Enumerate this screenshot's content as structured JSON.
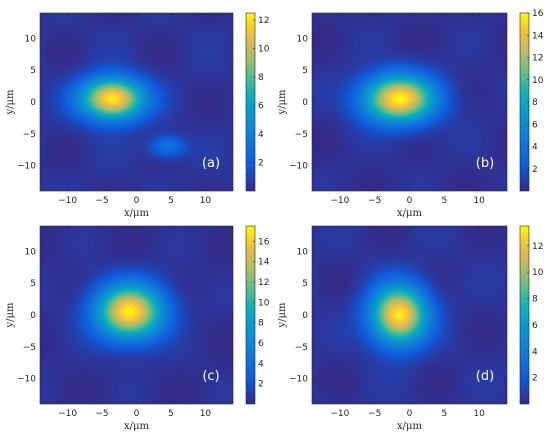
{
  "chart_data": [
    {
      "type": "heatmap",
      "panel_label": "(a)",
      "xlabel": "x/μm",
      "ylabel": "y/μm",
      "xlim": [
        -14,
        14
      ],
      "ylim": [
        -14,
        14
      ],
      "x_ticks": [
        "-10",
        "-5",
        "0",
        "5",
        "10"
      ],
      "y_ticks": [
        "10",
        "5",
        "0",
        "-5",
        "-10"
      ],
      "colorbar": {
        "min": 0,
        "max": 12.5,
        "ticks": [
          "12",
          "10",
          "8",
          "6",
          "4",
          "2"
        ]
      },
      "peaks": [
        {
          "x": -3.5,
          "y": 0.5,
          "value": 12.2,
          "sx": 3.2,
          "sy": 2.3
        },
        {
          "x": 4.5,
          "y": -7,
          "value": 3.0,
          "sx": 1.8,
          "sy": 1.2
        }
      ]
    },
    {
      "type": "heatmap",
      "panel_label": "(b)",
      "xlabel": "x/μm",
      "ylabel": "y/μm",
      "xlim": [
        -14,
        14
      ],
      "ylim": [
        -14,
        14
      ],
      "x_ticks": [
        "-10",
        "-5",
        "0",
        "5",
        "10"
      ],
      "y_ticks": [
        "10",
        "5",
        "0",
        "-5",
        "-10"
      ],
      "colorbar": {
        "min": 0,
        "max": 16,
        "ticks": [
          "16",
          "14",
          "12",
          "10",
          "8",
          "6",
          "4",
          "2"
        ]
      },
      "peaks": [
        {
          "x": -1.5,
          "y": 0.5,
          "value": 15.5,
          "sx": 3.6,
          "sy": 2.6
        }
      ]
    },
    {
      "type": "heatmap",
      "panel_label": "(c)",
      "xlabel": "x/μm",
      "ylabel": "y/μm",
      "xlim": [
        -14,
        14
      ],
      "ylim": [
        -14,
        14
      ],
      "x_ticks": [
        "-10",
        "-5",
        "0",
        "5",
        "10"
      ],
      "y_ticks": [
        "10",
        "5",
        "0",
        "-5",
        "-10"
      ],
      "colorbar": {
        "min": 0,
        "max": 17.5,
        "ticks": [
          "16",
          "14",
          "12",
          "10",
          "8",
          "6",
          "4",
          "2"
        ]
      },
      "peaks": [
        {
          "x": -1,
          "y": 0.5,
          "value": 16.8,
          "sx": 3.4,
          "sy": 3.0
        }
      ]
    },
    {
      "type": "heatmap",
      "panel_label": "(d)",
      "xlabel": "x/μm",
      "ylabel": "y/μm",
      "xlim": [
        -14,
        14
      ],
      "ylim": [
        -14,
        14
      ],
      "x_ticks": [
        "-10",
        "-5",
        "0",
        "5",
        "10"
      ],
      "y_ticks": [
        "10",
        "5",
        "0",
        "-5",
        "-10"
      ],
      "colorbar": {
        "min": 0,
        "max": 13.5,
        "ticks": [
          "12",
          "10",
          "8",
          "6",
          "4",
          "2"
        ]
      },
      "peaks": [
        {
          "x": -1.5,
          "y": 0,
          "value": 13,
          "sx": 2.8,
          "sy": 3.2
        }
      ]
    }
  ]
}
